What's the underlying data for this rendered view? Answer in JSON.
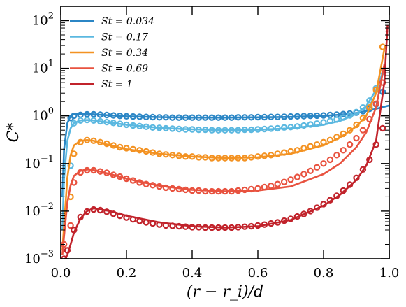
{
  "chart_data": {
    "type": "line",
    "xlabel": "(r − r_i)/d",
    "ylabel": "C*",
    "xlim": [
      0.0,
      1.0
    ],
    "ylim": [
      0.001,
      200
    ],
    "yscale": "log",
    "legend_position": "top-left",
    "grid": false,
    "x_ticks": [
      0.0,
      0.2,
      0.4,
      0.6,
      0.8,
      1.0
    ],
    "x_tick_labels": [
      "0.0",
      "0.2",
      "0.4",
      "0.6",
      "0.8",
      "1.0"
    ],
    "y_ticks": [
      0.001,
      0.01,
      0.1,
      1,
      10,
      100
    ],
    "y_tick_labels": [
      {
        "base": "10",
        "exp": "−3"
      },
      {
        "base": "10",
        "exp": "−2"
      },
      {
        "base": "10",
        "exp": "−1"
      },
      {
        "base": "10",
        "exp": "0"
      },
      {
        "base": "10",
        "exp": "1"
      },
      {
        "base": "10",
        "exp": "2"
      }
    ],
    "series": [
      {
        "name": "St = 0.034",
        "color": "#2b86c5",
        "line": {
          "x": [
            0.005,
            0.01,
            0.02,
            0.03,
            0.04,
            0.06,
            0.08,
            0.1,
            0.15,
            0.2,
            0.3,
            0.4,
            0.5,
            0.6,
            0.7,
            0.8,
            0.85,
            0.9,
            0.95,
            1.0
          ],
          "y": [
            0.02,
            0.2,
            0.7,
            1.0,
            1.08,
            1.1,
            1.1,
            1.08,
            1.02,
            0.98,
            0.94,
            0.92,
            0.92,
            0.93,
            0.95,
            1.0,
            1.06,
            1.15,
            1.35,
            1.65
          ]
        },
        "markers": {
          "x": [
            0.03,
            0.04,
            0.06,
            0.08,
            0.1,
            0.12,
            0.14,
            0.16,
            0.18,
            0.2,
            0.22,
            0.24,
            0.26,
            0.28,
            0.3,
            0.32,
            0.34,
            0.36,
            0.38,
            0.4,
            0.42,
            0.44,
            0.46,
            0.48,
            0.5,
            0.52,
            0.54,
            0.56,
            0.58,
            0.6,
            0.62,
            0.64,
            0.66,
            0.68,
            0.7,
            0.72,
            0.74,
            0.76,
            0.78,
            0.8,
            0.82,
            0.84,
            0.86,
            0.88,
            0.9,
            0.92,
            0.94,
            0.96,
            0.98
          ],
          "y": [
            0.9,
            1.0,
            1.05,
            1.08,
            1.08,
            1.06,
            1.04,
            1.02,
            1.0,
            0.98,
            0.97,
            0.96,
            0.95,
            0.94,
            0.93,
            0.93,
            0.92,
            0.92,
            0.92,
            0.92,
            0.92,
            0.92,
            0.92,
            0.92,
            0.92,
            0.92,
            0.93,
            0.93,
            0.93,
            0.94,
            0.94,
            0.95,
            0.95,
            0.96,
            0.97,
            0.98,
            0.99,
            1.0,
            1.01,
            1.02,
            1.04,
            1.06,
            1.09,
            1.12,
            1.17,
            1.25,
            1.4,
            1.75,
            3.2
          ]
        }
      },
      {
        "name": "St = 0.17",
        "color": "#5bb8e0",
        "line": {
          "x": [
            0.005,
            0.01,
            0.02,
            0.03,
            0.04,
            0.06,
            0.08,
            0.1,
            0.15,
            0.2,
            0.3,
            0.4,
            0.5,
            0.6,
            0.7,
            0.8,
            0.85,
            0.9,
            0.93,
            0.96,
            0.98
          ],
          "y": [
            0.004,
            0.05,
            0.3,
            0.55,
            0.7,
            0.8,
            0.82,
            0.8,
            0.72,
            0.65,
            0.56,
            0.52,
            0.5,
            0.51,
            0.55,
            0.65,
            0.78,
            1.1,
            1.6,
            3.5,
            8.0
          ]
        },
        "markers": {
          "x": [
            0.03,
            0.04,
            0.06,
            0.08,
            0.1,
            0.12,
            0.14,
            0.16,
            0.18,
            0.2,
            0.22,
            0.24,
            0.26,
            0.28,
            0.3,
            0.32,
            0.34,
            0.36,
            0.38,
            0.4,
            0.42,
            0.44,
            0.46,
            0.48,
            0.5,
            0.52,
            0.54,
            0.56,
            0.58,
            0.6,
            0.62,
            0.64,
            0.66,
            0.68,
            0.7,
            0.72,
            0.74,
            0.76,
            0.78,
            0.8,
            0.82,
            0.84,
            0.86,
            0.88,
            0.9,
            0.92,
            0.94,
            0.96,
            0.98
          ],
          "y": [
            0.09,
            0.7,
            0.8,
            0.82,
            0.8,
            0.77,
            0.74,
            0.71,
            0.68,
            0.65,
            0.63,
            0.61,
            0.59,
            0.57,
            0.56,
            0.55,
            0.54,
            0.53,
            0.52,
            0.52,
            0.51,
            0.51,
            0.5,
            0.5,
            0.5,
            0.5,
            0.5,
            0.51,
            0.51,
            0.52,
            0.53,
            0.54,
            0.55,
            0.57,
            0.58,
            0.6,
            0.63,
            0.66,
            0.69,
            0.73,
            0.78,
            0.84,
            0.92,
            1.02,
            1.2,
            1.5,
            2.1,
            3.8,
            8.5
          ]
        }
      },
      {
        "name": "St = 0.34",
        "color": "#f39222",
        "line": {
          "x": [
            0.005,
            0.01,
            0.02,
            0.03,
            0.04,
            0.06,
            0.08,
            0.1,
            0.15,
            0.2,
            0.3,
            0.4,
            0.5,
            0.6,
            0.7,
            0.8,
            0.85,
            0.9,
            0.93,
            0.96,
            0.985
          ],
          "y": [
            0.0015,
            0.005,
            0.05,
            0.15,
            0.24,
            0.3,
            0.31,
            0.3,
            0.24,
            0.2,
            0.16,
            0.14,
            0.13,
            0.135,
            0.16,
            0.24,
            0.35,
            0.6,
            1.0,
            3.0,
            25.0
          ]
        },
        "markers": {
          "x": [
            0.03,
            0.04,
            0.06,
            0.08,
            0.1,
            0.12,
            0.14,
            0.16,
            0.18,
            0.2,
            0.22,
            0.24,
            0.26,
            0.28,
            0.3,
            0.32,
            0.34,
            0.36,
            0.38,
            0.4,
            0.42,
            0.44,
            0.46,
            0.48,
            0.5,
            0.52,
            0.54,
            0.56,
            0.58,
            0.6,
            0.62,
            0.64,
            0.66,
            0.68,
            0.7,
            0.72,
            0.74,
            0.76,
            0.78,
            0.8,
            0.82,
            0.84,
            0.86,
            0.88,
            0.9,
            0.92,
            0.94,
            0.96,
            0.98
          ],
          "y": [
            0.02,
            0.16,
            0.28,
            0.31,
            0.3,
            0.28,
            0.26,
            0.24,
            0.22,
            0.21,
            0.2,
            0.19,
            0.18,
            0.17,
            0.16,
            0.155,
            0.15,
            0.145,
            0.14,
            0.14,
            0.135,
            0.135,
            0.13,
            0.13,
            0.13,
            0.13,
            0.13,
            0.13,
            0.135,
            0.14,
            0.145,
            0.15,
            0.16,
            0.17,
            0.18,
            0.19,
            0.21,
            0.23,
            0.25,
            0.28,
            0.31,
            0.36,
            0.42,
            0.5,
            0.65,
            0.9,
            1.5,
            3.5,
            28.0
          ]
        }
      },
      {
        "name": "St = 0.69",
        "color": "#e8523f",
        "line": {
          "x": [
            0.005,
            0.01,
            0.02,
            0.03,
            0.04,
            0.06,
            0.08,
            0.1,
            0.15,
            0.2,
            0.3,
            0.4,
            0.5,
            0.6,
            0.7,
            0.8,
            0.85,
            0.9,
            0.93,
            0.96,
            0.985
          ],
          "y": [
            0.0012,
            0.003,
            0.015,
            0.035,
            0.055,
            0.07,
            0.075,
            0.073,
            0.06,
            0.048,
            0.034,
            0.028,
            0.026,
            0.027,
            0.033,
            0.06,
            0.1,
            0.22,
            0.45,
            1.5,
            12.0
          ]
        },
        "markers": {
          "x": [
            0.01,
            0.03,
            0.04,
            0.06,
            0.08,
            0.1,
            0.12,
            0.14,
            0.16,
            0.18,
            0.2,
            0.22,
            0.24,
            0.26,
            0.28,
            0.3,
            0.32,
            0.34,
            0.36,
            0.38,
            0.4,
            0.42,
            0.44,
            0.46,
            0.48,
            0.5,
            0.52,
            0.54,
            0.56,
            0.58,
            0.6,
            0.62,
            0.64,
            0.66,
            0.68,
            0.7,
            0.72,
            0.74,
            0.76,
            0.78,
            0.8,
            0.82,
            0.84,
            0.86,
            0.88,
            0.9,
            0.92,
            0.94,
            0.96,
            0.98
          ],
          "y": [
            0.002,
            0.005,
            0.04,
            0.065,
            0.072,
            0.072,
            0.068,
            0.064,
            0.058,
            0.053,
            0.048,
            0.044,
            0.04,
            0.037,
            0.035,
            0.033,
            0.031,
            0.03,
            0.029,
            0.028,
            0.027,
            0.027,
            0.026,
            0.026,
            0.026,
            0.026,
            0.026,
            0.027,
            0.028,
            0.029,
            0.03,
            0.032,
            0.034,
            0.037,
            0.041,
            0.046,
            0.052,
            0.06,
            0.07,
            0.083,
            0.1,
            0.12,
            0.15,
            0.19,
            0.25,
            0.34,
            0.5,
            0.85,
            1.8,
            5.0
          ]
        }
      },
      {
        "name": "St = 1",
        "color": "#c1232b",
        "line": {
          "x": [
            0.005,
            0.02,
            0.03,
            0.04,
            0.06,
            0.08,
            0.1,
            0.15,
            0.2,
            0.3,
            0.4,
            0.5,
            0.6,
            0.7,
            0.8,
            0.85,
            0.9,
            0.93,
            0.96,
            0.985,
            0.995
          ],
          "y": [
            0.0008,
            0.0012,
            0.002,
            0.0035,
            0.007,
            0.01,
            0.0115,
            0.01,
            0.008,
            0.0058,
            0.0048,
            0.0045,
            0.0048,
            0.0065,
            0.013,
            0.022,
            0.045,
            0.09,
            0.3,
            5.0,
            80.0
          ]
        },
        "markers": {
          "x": [
            0.01,
            0.02,
            0.04,
            0.06,
            0.08,
            0.1,
            0.12,
            0.14,
            0.16,
            0.18,
            0.2,
            0.22,
            0.24,
            0.26,
            0.28,
            0.3,
            0.32,
            0.34,
            0.36,
            0.38,
            0.4,
            0.42,
            0.44,
            0.46,
            0.48,
            0.5,
            0.52,
            0.54,
            0.56,
            0.58,
            0.6,
            0.62,
            0.64,
            0.66,
            0.68,
            0.7,
            0.72,
            0.74,
            0.76,
            0.78,
            0.8,
            0.82,
            0.84,
            0.86,
            0.88,
            0.9,
            0.92,
            0.94,
            0.96,
            0.98
          ],
          "y": [
            0.001,
            0.0015,
            0.004,
            0.0075,
            0.0098,
            0.0108,
            0.0105,
            0.0097,
            0.0088,
            0.008,
            0.0073,
            0.0067,
            0.0062,
            0.0058,
            0.0055,
            0.0052,
            0.005,
            0.0049,
            0.0048,
            0.0047,
            0.0046,
            0.0046,
            0.0045,
            0.0045,
            0.0045,
            0.0045,
            0.0045,
            0.0046,
            0.0047,
            0.0048,
            0.005,
            0.0052,
            0.0055,
            0.0058,
            0.0063,
            0.0069,
            0.0077,
            0.0087,
            0.01,
            0.0118,
            0.014,
            0.017,
            0.021,
            0.027,
            0.036,
            0.05,
            0.075,
            0.12,
            0.25,
            0.55
          ]
        }
      }
    ]
  }
}
